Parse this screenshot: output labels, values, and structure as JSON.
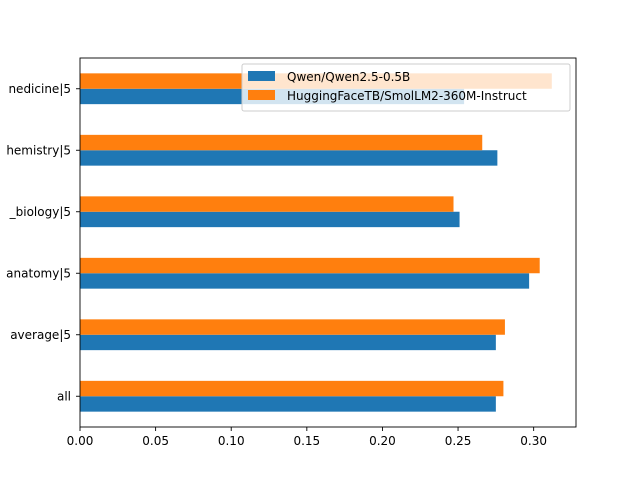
{
  "chart_data": {
    "type": "bar",
    "orientation": "horizontal",
    "categories": [
      "all",
      "average|5",
      "anatomy|5",
      "_biology|5",
      "hemistry|5",
      "nedicine|5"
    ],
    "series": [
      {
        "name": "Qwen/Qwen2.5-0.5B",
        "color": "#1f77b4",
        "values": [
          0.275,
          0.275,
          0.297,
          0.251,
          0.276,
          0.254
        ]
      },
      {
        "name": "HuggingFaceTB/SmolLM2-360M-Instruct",
        "color": "#ff7f0e",
        "values": [
          0.28,
          0.281,
          0.304,
          0.247,
          0.266,
          0.312
        ]
      }
    ],
    "xlim": [
      0,
      0.328
    ],
    "xticks": [
      "0.00",
      "0.05",
      "0.10",
      "0.15",
      "0.20",
      "0.25",
      "0.30"
    ],
    "xtick_values": [
      0,
      0.05,
      0.1,
      0.15,
      0.2,
      0.25,
      0.3
    ],
    "legend_position": "top-right",
    "grid": false
  }
}
